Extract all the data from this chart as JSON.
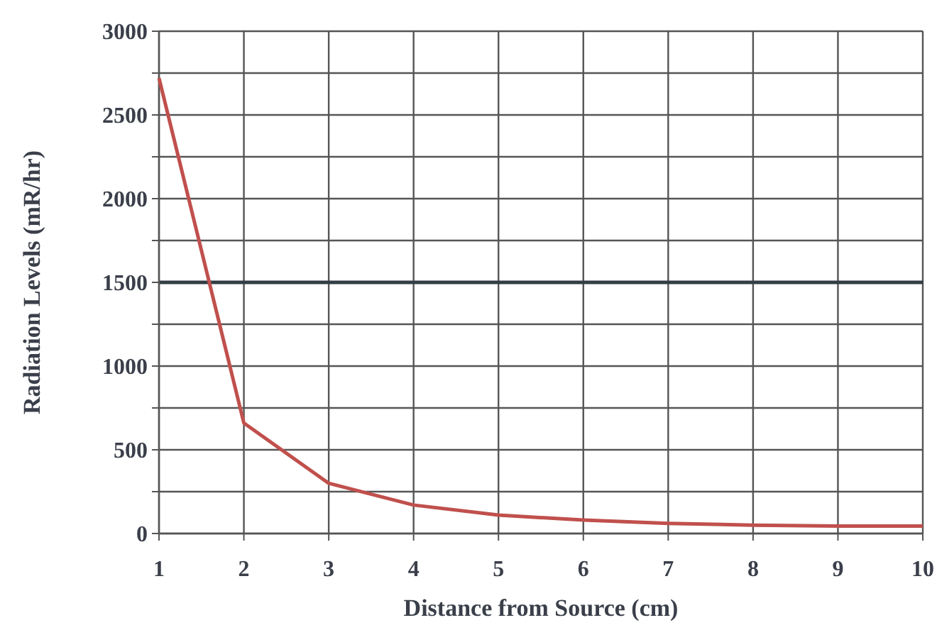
{
  "chart_data": {
    "type": "line",
    "xlabel": "Distance from Source (cm)",
    "ylabel": "Radiation Levels (mR/hr)",
    "x": [
      1,
      2,
      3,
      4,
      5,
      6,
      7,
      8,
      9,
      10
    ],
    "series": [
      {
        "color": "#c0504d",
        "values": [
          2720,
          660,
          300,
          170,
          110,
          80,
          60,
          50,
          45,
          45
        ]
      }
    ],
    "xlim": [
      1,
      10
    ],
    "xticks": [
      1,
      2,
      3,
      4,
      5,
      6,
      7,
      8,
      9,
      10
    ],
    "ylim": [
      0,
      3000
    ],
    "yticks": [
      0,
      {
        "value": 250,
        "label": null
      },
      500,
      {
        "value": 750,
        "label": null
      },
      1000,
      {
        "value": 1250,
        "label": null
      },
      1500,
      {
        "value": 1750,
        "label": null
      },
      2000,
      {
        "value": 2250,
        "label": null
      },
      2500,
      {
        "value": 2750,
        "label": null
      },
      3000
    ],
    "grid": true,
    "ref_lines": [
      {
        "axis": "y",
        "value": 1500,
        "color": "#333d45"
      }
    ],
    "marker": "none",
    "line_style": "solid"
  }
}
